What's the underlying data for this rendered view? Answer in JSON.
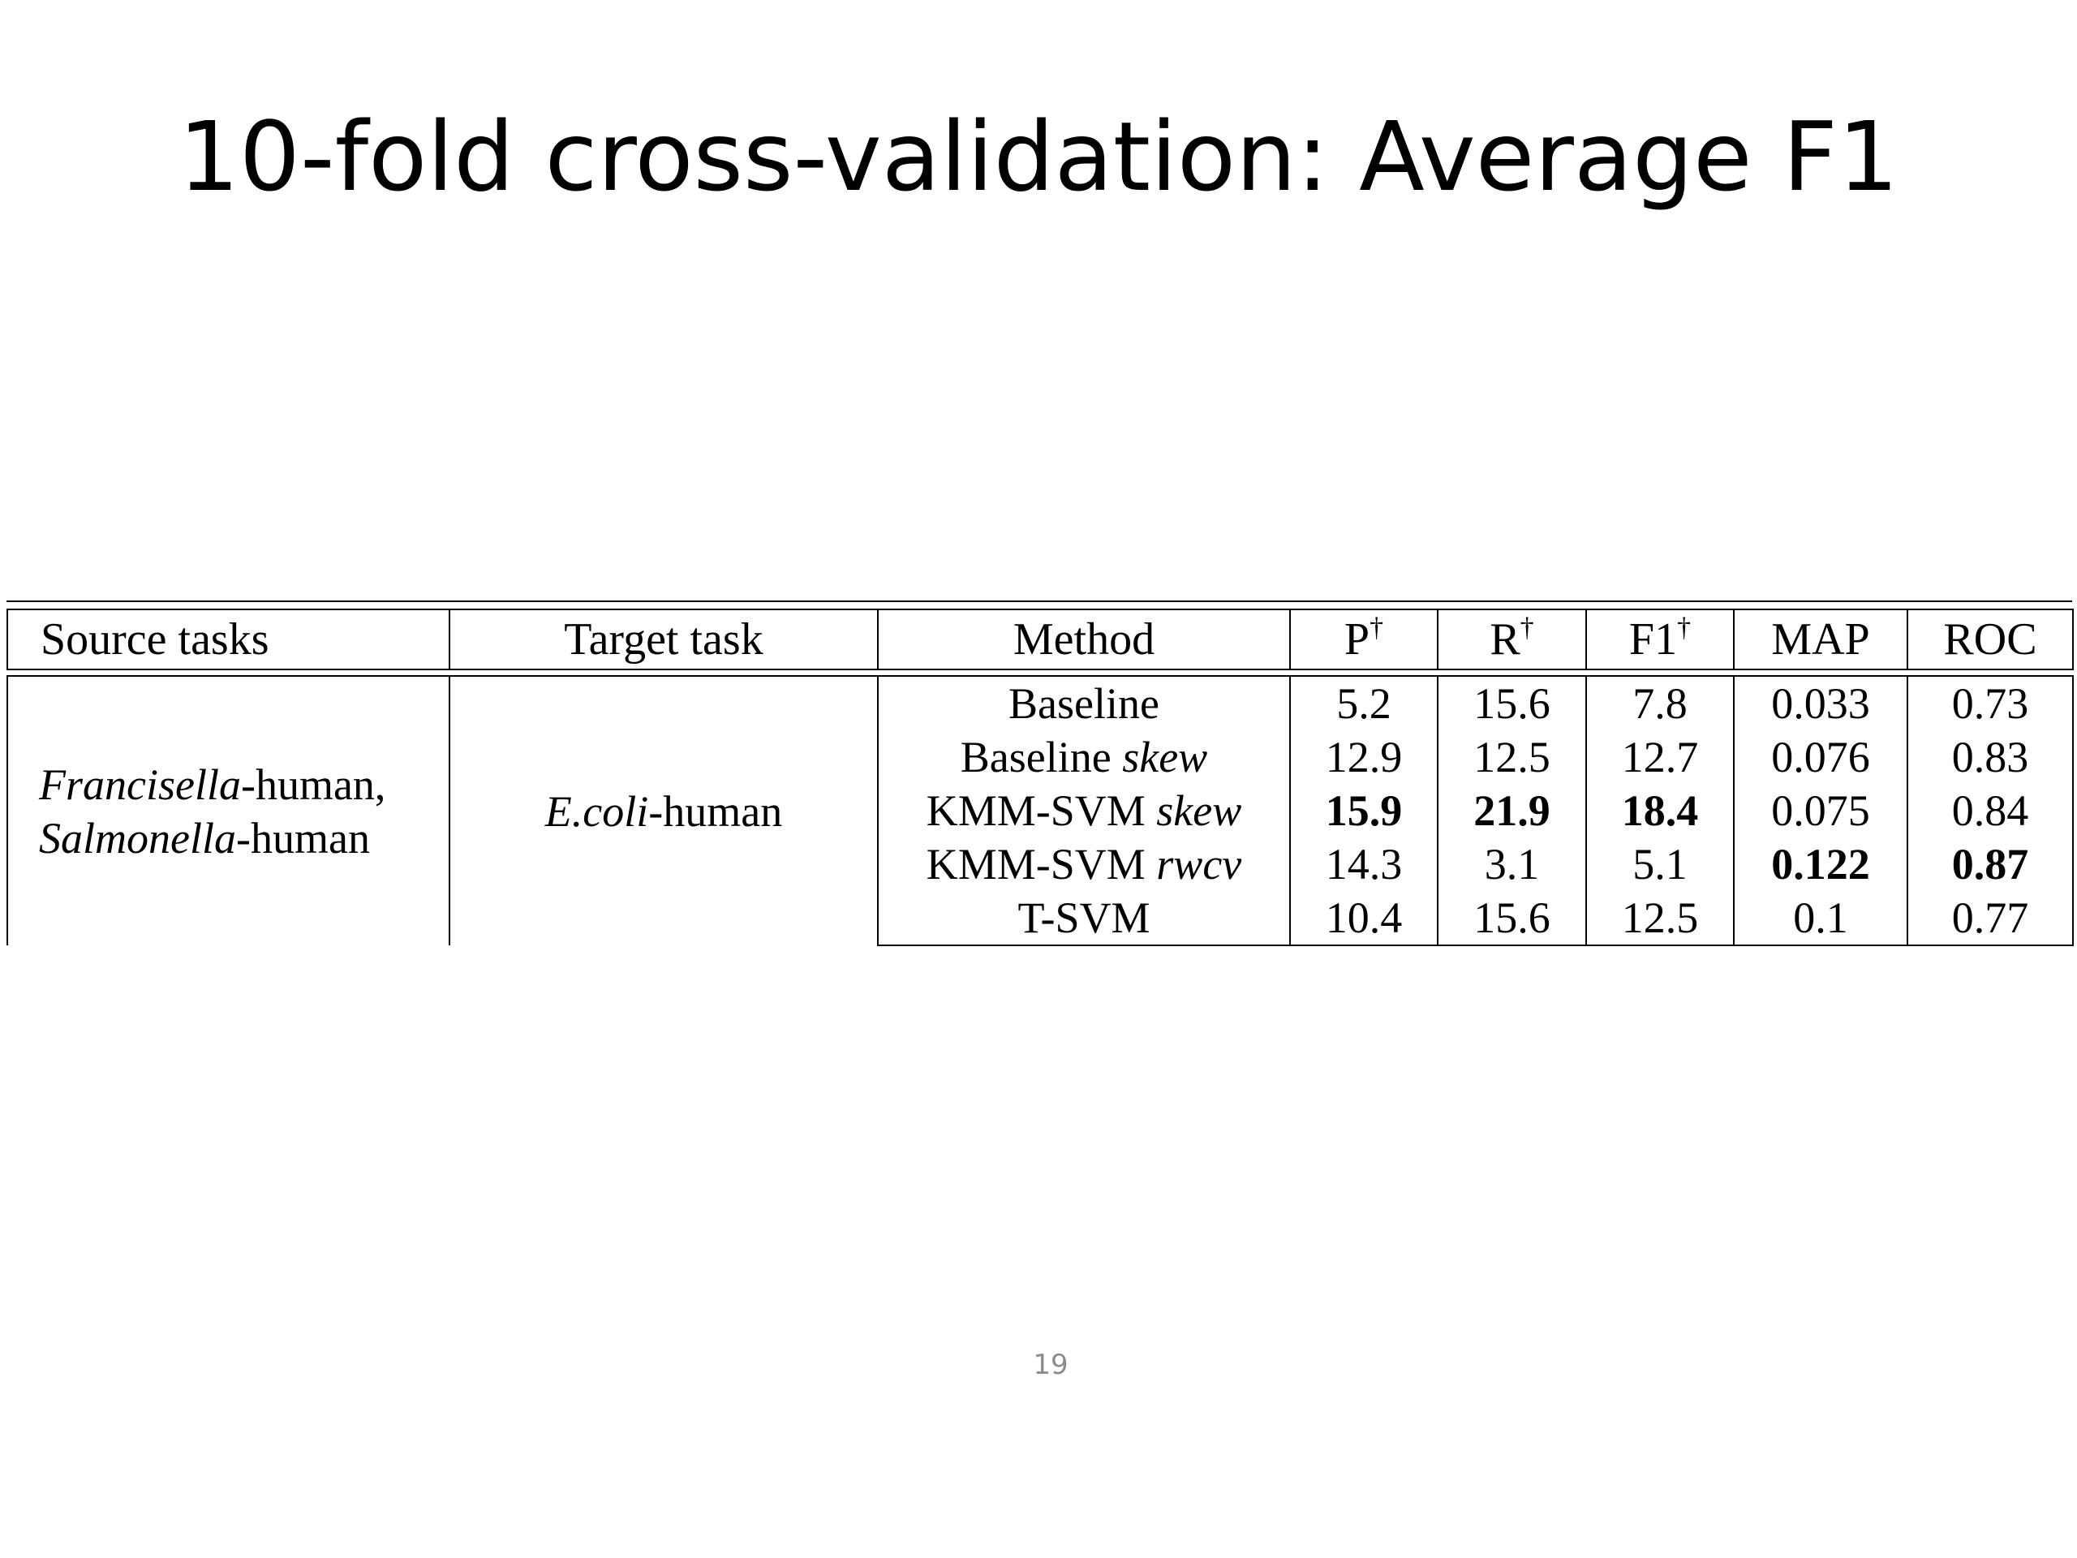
{
  "slide": {
    "title": "10-fold cross-validation: Average F1",
    "page_number": "19"
  },
  "table": {
    "headers": {
      "source_tasks": "Source tasks",
      "target_task": "Target task",
      "method": "Method",
      "p": "P",
      "r": "R",
      "f1": "F1",
      "map": "MAP",
      "roc": "ROC",
      "dagger": "†"
    },
    "source": {
      "line1_italic": "Francisella",
      "line1_rest": "-human,",
      "line2_italic": "Salmonella",
      "line2_rest": "-human"
    },
    "target": {
      "italic": "E.coli",
      "rest": "-human"
    },
    "rows": [
      {
        "method": "Baseline",
        "method_suffix": "",
        "p": "5.2",
        "r": "15.6",
        "f1": "7.8",
        "map": "0.033",
        "roc": "0.73"
      },
      {
        "method": "Baseline ",
        "method_suffix": "skew",
        "p": "12.9",
        "r": "12.5",
        "f1": "12.7",
        "map": "0.076",
        "roc": "0.83"
      },
      {
        "method": "KMM-SVM ",
        "method_suffix": "skew",
        "p": "15.9",
        "r": "21.9",
        "f1": "18.4",
        "map": "0.075",
        "roc": "0.84"
      },
      {
        "method": "KMM-SVM ",
        "method_suffix": "rwcv",
        "p": "14.3",
        "r": "3.1",
        "f1": "5.1",
        "map": "0.122",
        "roc": "0.87"
      },
      {
        "method": "T-SVM",
        "method_suffix": "",
        "p": "10.4",
        "r": "15.6",
        "f1": "12.5",
        "map": "0.1",
        "roc": "0.77"
      }
    ]
  }
}
